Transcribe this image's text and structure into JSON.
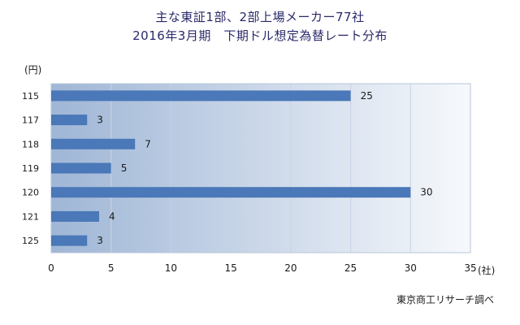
{
  "title_line1": "主な東証1部、2部上場メーカー77社",
  "title_line2": "2016年3月期　下期ドル想定為替レート分布",
  "source": "東京商工リサーチ調べ",
  "colors": {
    "bar": "#4a78b8",
    "plot_bg_left": "#9fb6d6",
    "plot_bg_right": "#f7f9fc",
    "title": "#2a2a6a"
  },
  "chart_data": {
    "type": "bar",
    "orientation": "horizontal",
    "title": "主な東証1部、2部上場メーカー77社 2016年3月期　下期ドル想定為替レート分布",
    "ylabel": "(円)",
    "xlabel": "(社)",
    "categories": [
      "115",
      "117",
      "118",
      "119",
      "120",
      "121",
      "125"
    ],
    "values": [
      25,
      3,
      7,
      5,
      30,
      4,
      3
    ],
    "xlim": [
      0,
      35
    ],
    "xticks": [
      0,
      5,
      10,
      15,
      20,
      25,
      30,
      35
    ],
    "grid": "vertical",
    "legend": "none"
  }
}
